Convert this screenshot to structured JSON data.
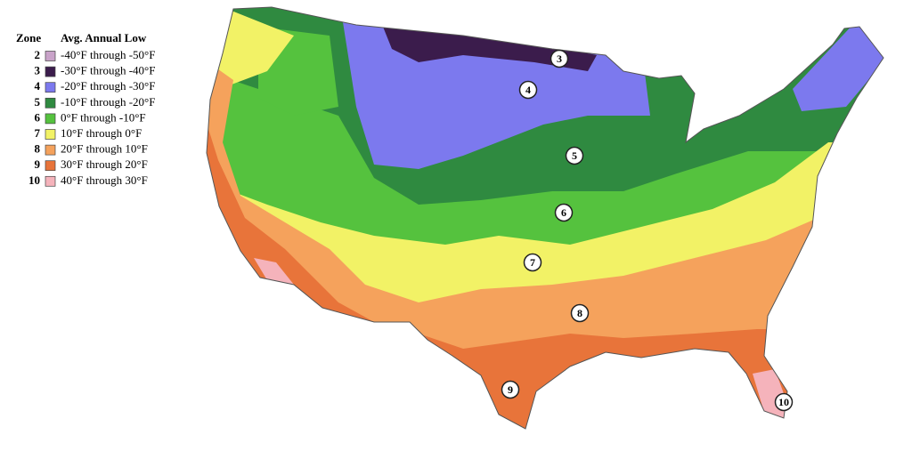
{
  "legend": {
    "zone_header": "Zone",
    "low_header": "Avg. Annual Low",
    "zones": [
      {
        "zone": "2",
        "range": "-40°F through -50°F",
        "color": "#c9a3c9"
      },
      {
        "zone": "3",
        "range": "-30°F through -40°F",
        "color": "#3b1c4c"
      },
      {
        "zone": "4",
        "range": "-20°F through -30°F",
        "color": "#7c79ee"
      },
      {
        "zone": "5",
        "range": "-10°F through -20°F",
        "color": "#2f8a40"
      },
      {
        "zone": "6",
        "range": "0°F through -10°F",
        "color": "#55c23e"
      },
      {
        "zone": "7",
        "range": "10°F through 0°F",
        "color": "#f2f266"
      },
      {
        "zone": "8",
        "range": "20°F through 10°F",
        "color": "#f5a25c"
      },
      {
        "zone": "9",
        "range": "30°F through 20°F",
        "color": "#e8743a"
      },
      {
        "zone": "10",
        "range": "40°F through 30°F",
        "color": "#f5b3bb"
      }
    ]
  },
  "map_labels": [
    "3",
    "4",
    "5",
    "6",
    "7",
    "8",
    "9",
    "10"
  ]
}
